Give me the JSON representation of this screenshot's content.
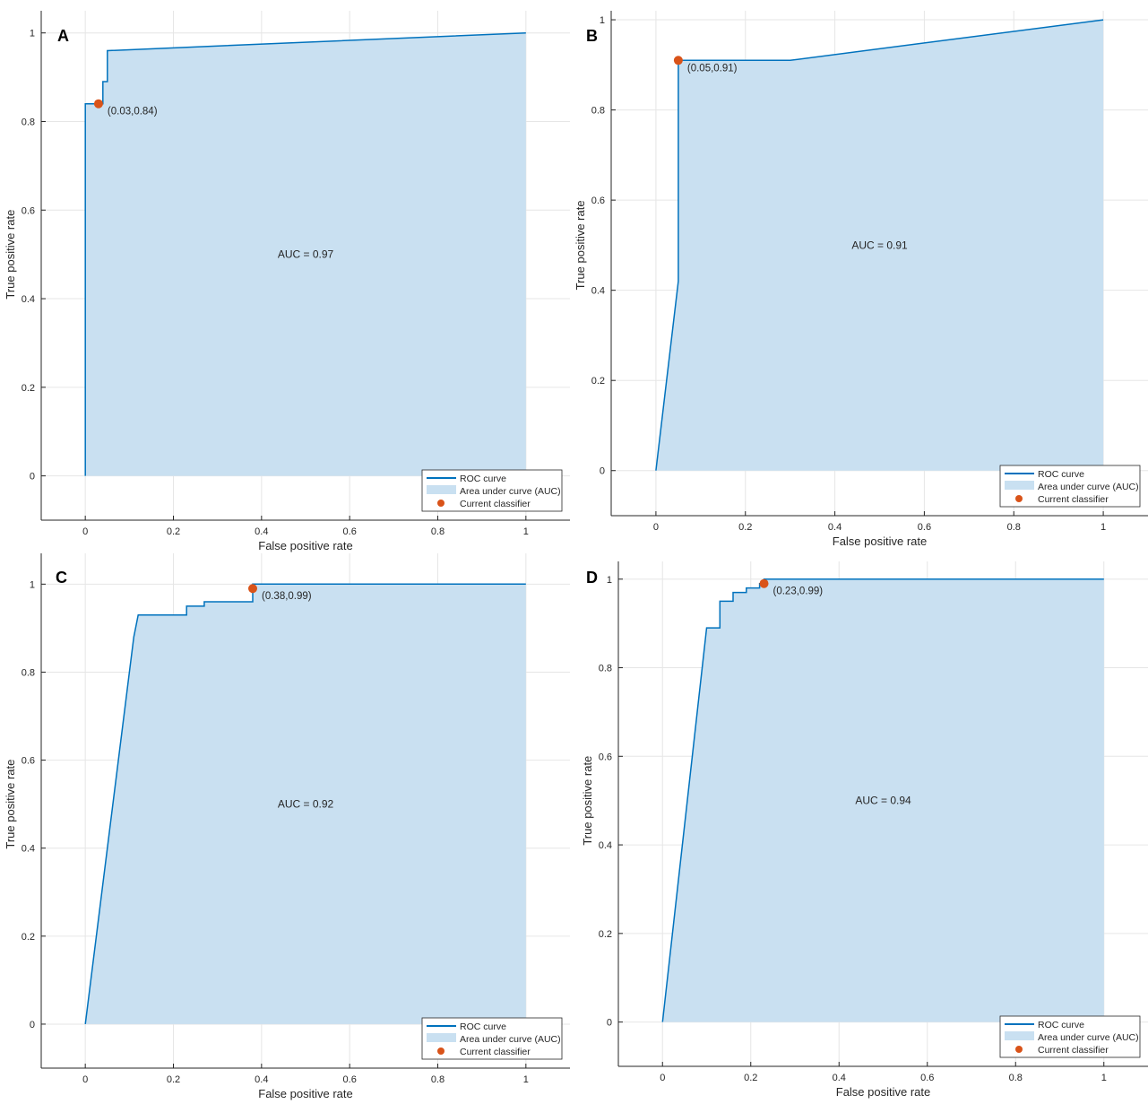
{
  "colors": {
    "roc_line": "#0072bd",
    "auc_fill": "#c9e0f1",
    "classifier_point": "#d95319",
    "grid": "#e6e6e6",
    "axes": "#262626"
  },
  "legend": {
    "roc_curve": "ROC curve",
    "auc_area": "Area under curve (AUC)",
    "current_classifier": "Current classifier"
  },
  "chart_data": [
    {
      "panel": "A",
      "type": "line",
      "xlabel": "False positive rate",
      "ylabel": "True positive rate",
      "xlim": [
        -0.1,
        1.1
      ],
      "ylim": [
        -0.1,
        1.05
      ],
      "xticks": [
        "0",
        "0.2",
        "0.4",
        "0.6",
        "0.8",
        "1"
      ],
      "yticks": [
        "0",
        "0.2",
        "0.4",
        "0.6",
        "0.8",
        "1"
      ],
      "grid": true,
      "legend_position": "bottom-right",
      "auc_text": "AUC = 0.97",
      "operating_point": {
        "x": 0.03,
        "y": 0.84,
        "label": "(0.03,0.84)"
      },
      "roc_x": [
        0,
        0,
        0.04,
        0.04,
        0.05,
        0.05,
        1
      ],
      "roc_y": [
        0,
        0.84,
        0.84,
        0.89,
        0.89,
        0.96,
        1
      ]
    },
    {
      "panel": "B",
      "type": "line",
      "xlabel": "False positive rate",
      "ylabel": "True positive rate",
      "xlim": [
        -0.1,
        1.1
      ],
      "ylim": [
        -0.1,
        1.02
      ],
      "xticks": [
        "0",
        "0.2",
        "0.4",
        "0.6",
        "0.8",
        "1"
      ],
      "yticks": [
        "0",
        "0.2",
        "0.4",
        "0.6",
        "0.8",
        "1"
      ],
      "grid": true,
      "legend_position": "bottom-right",
      "auc_text": "AUC = 0.91",
      "operating_point": {
        "x": 0.05,
        "y": 0.91,
        "label": "(0.05,0.91)"
      },
      "roc_x": [
        0,
        0.05,
        0.05,
        0.3,
        1
      ],
      "roc_y": [
        0,
        0.42,
        0.91,
        0.91,
        1
      ]
    },
    {
      "panel": "C",
      "type": "line",
      "xlabel": "False positive rate",
      "ylabel": "True positive rate",
      "xlim": [
        -0.1,
        1.1
      ],
      "ylim": [
        -0.1,
        1.07
      ],
      "xticks": [
        "0",
        "0.2",
        "0.4",
        "0.6",
        "0.8",
        "1"
      ],
      "yticks": [
        "0",
        "0.2",
        "0.4",
        "0.6",
        "0.8",
        "1"
      ],
      "grid": true,
      "legend_position": "bottom-right",
      "auc_text": "AUC = 0.92",
      "operating_point": {
        "x": 0.38,
        "y": 0.99,
        "label": "(0.38,0.99)"
      },
      "roc_x": [
        0,
        0.11,
        0.12,
        0.23,
        0.23,
        0.27,
        0.27,
        0.38,
        0.38,
        1
      ],
      "roc_y": [
        0,
        0.88,
        0.93,
        0.93,
        0.95,
        0.95,
        0.96,
        0.96,
        1,
        1
      ]
    },
    {
      "panel": "D",
      "type": "line",
      "xlabel": "False positive rate",
      "ylabel": "True positive rate",
      "xlim": [
        -0.1,
        1.1
      ],
      "ylim": [
        -0.1,
        1.04
      ],
      "xticks": [
        "0",
        "0.2",
        "0.4",
        "0.6",
        "0.8",
        "1"
      ],
      "yticks": [
        "0",
        "0.2",
        "0.4",
        "0.6",
        "0.8",
        "1"
      ],
      "grid": true,
      "legend_position": "bottom-right",
      "auc_text": "AUC = 0.94",
      "operating_point": {
        "x": 0.23,
        "y": 0.99,
        "label": "(0.23,0.99)"
      },
      "roc_x": [
        0,
        0.1,
        0.13,
        0.13,
        0.16,
        0.16,
        0.19,
        0.19,
        0.22,
        0.22,
        0.23,
        0.23,
        1
      ],
      "roc_y": [
        0,
        0.89,
        0.89,
        0.95,
        0.95,
        0.97,
        0.97,
        0.98,
        0.98,
        0.99,
        0.99,
        1,
        1
      ]
    }
  ]
}
